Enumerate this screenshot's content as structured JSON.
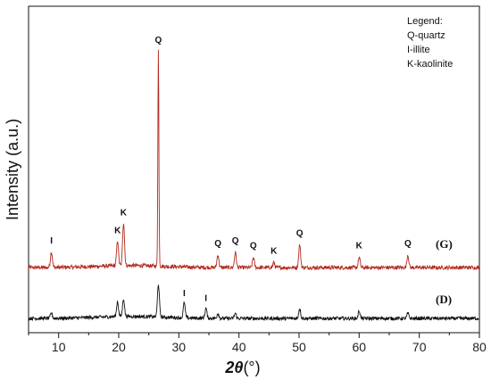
{
  "chart_data": {
    "type": "line",
    "xlabel_main": "2θ",
    "xlabel_unit": "(°)",
    "ylabel": "Intensity (a.u.)",
    "xlim": [
      5,
      80
    ],
    "xticks": [
      "10",
      "20",
      "30",
      "40",
      "50",
      "60",
      "70",
      "80"
    ],
    "legend": {
      "position": "top-right",
      "title": "Legend:",
      "entries": [
        "Q-quartz",
        "I-illite",
        "K-kaolinite"
      ]
    },
    "series": [
      {
        "name": "(G)",
        "color": "#b22a1e",
        "peaks": [
          {
            "x": 8.8,
            "h": 0.06,
            "label": "I"
          },
          {
            "x": 19.8,
            "h": 0.1,
            "label": "K"
          },
          {
            "x": 20.8,
            "h": 0.17,
            "label": "K"
          },
          {
            "x": 26.6,
            "h": 0.85,
            "label": "Q"
          },
          {
            "x": 36.5,
            "h": 0.05,
            "label": "Q"
          },
          {
            "x": 39.4,
            "h": 0.06,
            "label": "Q"
          },
          {
            "x": 42.4,
            "h": 0.04,
            "label": "Q"
          },
          {
            "x": 45.8,
            "h": 0.02,
            "label": "K"
          },
          {
            "x": 50.1,
            "h": 0.09,
            "label": "Q"
          },
          {
            "x": 60.0,
            "h": 0.04,
            "label": "K"
          },
          {
            "x": 68.1,
            "h": 0.05,
            "label": "Q"
          }
        ]
      },
      {
        "name": "(D)",
        "color": "#111111",
        "peaks": [
          {
            "x": 8.8,
            "h": 0.02,
            "label": ""
          },
          {
            "x": 19.8,
            "h": 0.06,
            "label": ""
          },
          {
            "x": 20.8,
            "h": 0.07,
            "label": ""
          },
          {
            "x": 26.6,
            "h": 0.13,
            "label": ""
          },
          {
            "x": 30.9,
            "h": 0.06,
            "label": "I"
          },
          {
            "x": 34.5,
            "h": 0.04,
            "label": "I"
          },
          {
            "x": 36.5,
            "h": 0.02,
            "label": ""
          },
          {
            "x": 39.4,
            "h": 0.02,
            "label": ""
          },
          {
            "x": 50.1,
            "h": 0.04,
            "label": ""
          },
          {
            "x": 60.0,
            "h": 0.03,
            "label": ""
          },
          {
            "x": 68.1,
            "h": 0.02,
            "label": ""
          }
        ]
      }
    ]
  }
}
